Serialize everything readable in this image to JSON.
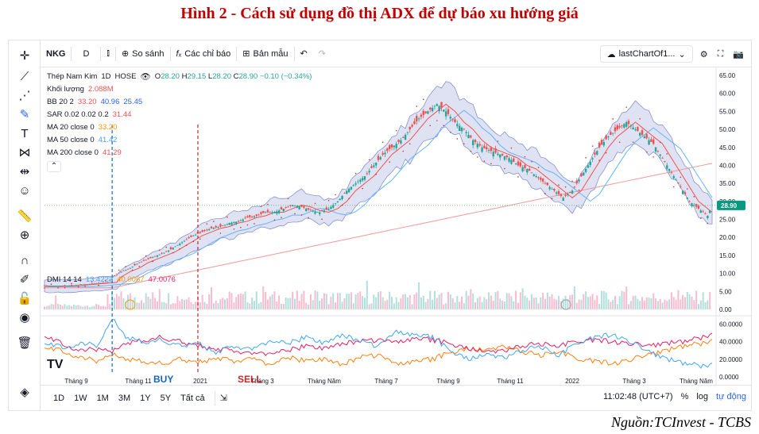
{
  "figure": {
    "title": "Hình 2 - Cách sử dụng đồ thị ADX để dự báo xu hướng giá",
    "source": "Nguồn:TCInvest - TCBS"
  },
  "toolbar": {
    "symbol": "NKG",
    "interval": "D",
    "compare": "So sánh",
    "indicators": "Các chỉ báo",
    "templates": "Bản mẫu",
    "layout_name": "lastChartOf1..."
  },
  "legend": {
    "title": "Thép Nam Kim",
    "interval": "1D",
    "exchange": "HOSE",
    "ohlc": {
      "o_label": "O",
      "o": "28.20",
      "h_label": "H",
      "h": "29.15",
      "l_label": "L",
      "l": "28.20",
      "c_label": "C",
      "c": "28.90",
      "change": "−0.10 (−0.34%)"
    },
    "volume": {
      "label": "Khối lượng",
      "value": "2.088M"
    },
    "bb": {
      "label": "BB 20 2",
      "v1": "33.20",
      "v2": "40.96",
      "v3": "25.45"
    },
    "sar": {
      "label": "SAR 0.02 0.02 0.2",
      "value": "31.44"
    },
    "ma20": {
      "label": "MA 20 close 0",
      "value": "33.20"
    },
    "ma50": {
      "label": "MA 50 close 0",
      "value": "41.42"
    },
    "ma200": {
      "label": "MA 200 close 0",
      "value": "41.29"
    },
    "dmi": {
      "label": "DMI 14 14",
      "v1": "13.4223",
      "v2": "40.0067",
      "v3": "47.0076"
    },
    "collapse": "⌃"
  },
  "annotations": {
    "buy": "BUY",
    "sell": "SELL",
    "logo": "TV"
  },
  "bottom_bar": {
    "ranges": [
      "1D",
      "1W",
      "1M",
      "3M",
      "1Y",
      "5Y",
      "Tất cả"
    ],
    "time": "11:02:48 (UTC+7)",
    "percent": "%",
    "log": "log",
    "auto": "tự động"
  },
  "colors": {
    "up": "#26a69a",
    "down": "#ef5350",
    "bb_fill": "#c5cae9",
    "ma20": "#ef5350",
    "ma50": "#64b5f6",
    "ma200": "#ef9a9a",
    "dmi_plus": "#42a5f5",
    "dmi_minus": "#ff7f0e",
    "adx": "#e91e63",
    "buy": "#1565c0",
    "sell": "#c62828",
    "price_tag": "#089981"
  },
  "chart_data": {
    "type": "line",
    "price_axis": {
      "ticks": [
        "65.00",
        "60.00",
        "55.00",
        "50.00",
        "45.00",
        "40.00",
        "35.00",
        "30.00",
        "25.00",
        "20.00",
        "15.00",
        "10.00",
        "5.00",
        "0.00"
      ],
      "min": 0,
      "max": 65,
      "last": "28.90"
    },
    "dmi_axis": {
      "ticks": [
        "60.0000",
        "40.0000",
        "20.0000",
        "0.0000"
      ],
      "min": 0,
      "max": 65
    },
    "time_labels": [
      "Tháng 9",
      "Tháng 11",
      "2021",
      "Tháng 3",
      "Tháng Năm",
      "Tháng 7",
      "Tháng 9",
      "Tháng 11",
      "2022",
      "Tháng 3",
      "Tháng Năm"
    ],
    "price_path": [
      [
        0,
        6.5
      ],
      [
        8,
        6.5
      ],
      [
        15,
        6.8
      ],
      [
        22,
        7.2
      ],
      [
        28,
        7.5
      ],
      [
        30,
        9
      ],
      [
        34,
        10.5
      ],
      [
        38,
        11.5
      ],
      [
        42,
        13
      ],
      [
        46,
        14
      ],
      [
        50,
        15
      ],
      [
        54,
        16
      ],
      [
        58,
        17.5
      ],
      [
        62,
        19
      ],
      [
        66,
        20.5
      ],
      [
        70,
        21.5
      ],
      [
        74,
        22.5
      ],
      [
        78,
        23
      ],
      [
        82,
        24
      ],
      [
        86,
        24.5
      ],
      [
        90,
        25.5
      ],
      [
        94,
        26
      ],
      [
        98,
        27
      ],
      [
        102,
        27
      ],
      [
        106,
        28
      ],
      [
        110,
        29
      ],
      [
        114,
        28.5
      ],
      [
        118,
        27.5
      ],
      [
        122,
        27
      ],
      [
        126,
        28
      ],
      [
        130,
        30
      ],
      [
        134,
        33
      ],
      [
        138,
        35
      ],
      [
        142,
        37
      ],
      [
        146,
        40
      ],
      [
        150,
        43
      ],
      [
        154,
        45
      ],
      [
        158,
        47
      ],
      [
        162,
        50
      ],
      [
        166,
        53
      ],
      [
        170,
        55
      ],
      [
        174,
        57
      ],
      [
        178,
        55
      ],
      [
        182,
        52
      ],
      [
        186,
        50
      ],
      [
        190,
        47
      ],
      [
        194,
        45
      ],
      [
        198,
        44
      ],
      [
        202,
        43
      ],
      [
        206,
        42
      ],
      [
        210,
        40
      ],
      [
        214,
        39
      ],
      [
        218,
        37
      ],
      [
        222,
        35
      ],
      [
        226,
        33
      ],
      [
        230,
        31
      ],
      [
        234,
        33
      ],
      [
        238,
        37
      ],
      [
        242,
        41
      ],
      [
        246,
        45
      ],
      [
        250,
        48
      ],
      [
        254,
        50
      ],
      [
        258,
        52
      ],
      [
        262,
        50
      ],
      [
        266,
        48
      ],
      [
        270,
        46
      ],
      [
        274,
        42
      ],
      [
        278,
        38
      ],
      [
        282,
        34
      ],
      [
        286,
        30
      ],
      [
        290,
        28
      ],
      [
        294,
        26
      ],
      [
        296,
        28.9
      ]
    ],
    "dmi_plus": [
      [
        0,
        40
      ],
      [
        8,
        34
      ],
      [
        16,
        38
      ],
      [
        24,
        36
      ],
      [
        30,
        66
      ],
      [
        36,
        45
      ],
      [
        44,
        40
      ],
      [
        52,
        42
      ],
      [
        60,
        35
      ],
      [
        68,
        38
      ],
      [
        76,
        28
      ],
      [
        84,
        35
      ],
      [
        92,
        30
      ],
      [
        100,
        42
      ],
      [
        108,
        38
      ],
      [
        116,
        45
      ],
      [
        124,
        38
      ],
      [
        132,
        48
      ],
      [
        140,
        40
      ],
      [
        148,
        35
      ],
      [
        156,
        52
      ],
      [
        164,
        48
      ],
      [
        172,
        45
      ],
      [
        180,
        30
      ],
      [
        188,
        20
      ],
      [
        196,
        25
      ],
      [
        204,
        22
      ],
      [
        212,
        30
      ],
      [
        220,
        35
      ],
      [
        228,
        25
      ],
      [
        236,
        38
      ],
      [
        244,
        45
      ],
      [
        252,
        48
      ],
      [
        260,
        40
      ],
      [
        268,
        28
      ],
      [
        276,
        20
      ],
      [
        284,
        15
      ],
      [
        292,
        12
      ],
      [
        296,
        13
      ]
    ],
    "dmi_minus": [
      [
        0,
        35
      ],
      [
        8,
        30
      ],
      [
        16,
        22
      ],
      [
        24,
        18
      ],
      [
        30,
        25
      ],
      [
        36,
        20
      ],
      [
        44,
        18
      ],
      [
        52,
        15
      ],
      [
        60,
        20
      ],
      [
        68,
        16
      ],
      [
        76,
        22
      ],
      [
        84,
        18
      ],
      [
        92,
        20
      ],
      [
        100,
        15
      ],
      [
        108,
        22
      ],
      [
        116,
        18
      ],
      [
        124,
        20
      ],
      [
        132,
        14
      ],
      [
        140,
        22
      ],
      [
        148,
        25
      ],
      [
        156,
        15
      ],
      [
        164,
        18
      ],
      [
        172,
        20
      ],
      [
        180,
        28
      ],
      [
        188,
        32
      ],
      [
        196,
        30
      ],
      [
        204,
        35
      ],
      [
        212,
        28
      ],
      [
        220,
        25
      ],
      [
        228,
        30
      ],
      [
        236,
        20
      ],
      [
        244,
        18
      ],
      [
        252,
        15
      ],
      [
        260,
        20
      ],
      [
        268,
        25
      ],
      [
        276,
        30
      ],
      [
        284,
        35
      ],
      [
        292,
        38
      ],
      [
        296,
        40
      ]
    ],
    "adx": [
      [
        0,
        48
      ],
      [
        8,
        38
      ],
      [
        16,
        30
      ],
      [
        24,
        32
      ],
      [
        30,
        28
      ],
      [
        36,
        38
      ],
      [
        44,
        42
      ],
      [
        52,
        45
      ],
      [
        60,
        40
      ],
      [
        68,
        35
      ],
      [
        76,
        32
      ],
      [
        84,
        30
      ],
      [
        92,
        25
      ],
      [
        100,
        28
      ],
      [
        108,
        30
      ],
      [
        116,
        35
      ],
      [
        124,
        32
      ],
      [
        132,
        38
      ],
      [
        140,
        40
      ],
      [
        148,
        42
      ],
      [
        156,
        40
      ],
      [
        164,
        44
      ],
      [
        172,
        42
      ],
      [
        180,
        38
      ],
      [
        188,
        32
      ],
      [
        196,
        28
      ],
      [
        204,
        30
      ],
      [
        212,
        35
      ],
      [
        220,
        38
      ],
      [
        228,
        36
      ],
      [
        236,
        40
      ],
      [
        244,
        42
      ],
      [
        252,
        40
      ],
      [
        260,
        38
      ],
      [
        268,
        35
      ],
      [
        276,
        38
      ],
      [
        284,
        40
      ],
      [
        292,
        45
      ],
      [
        296,
        47
      ]
    ],
    "buy_index": 30,
    "sell_index": 68,
    "n": 296
  }
}
